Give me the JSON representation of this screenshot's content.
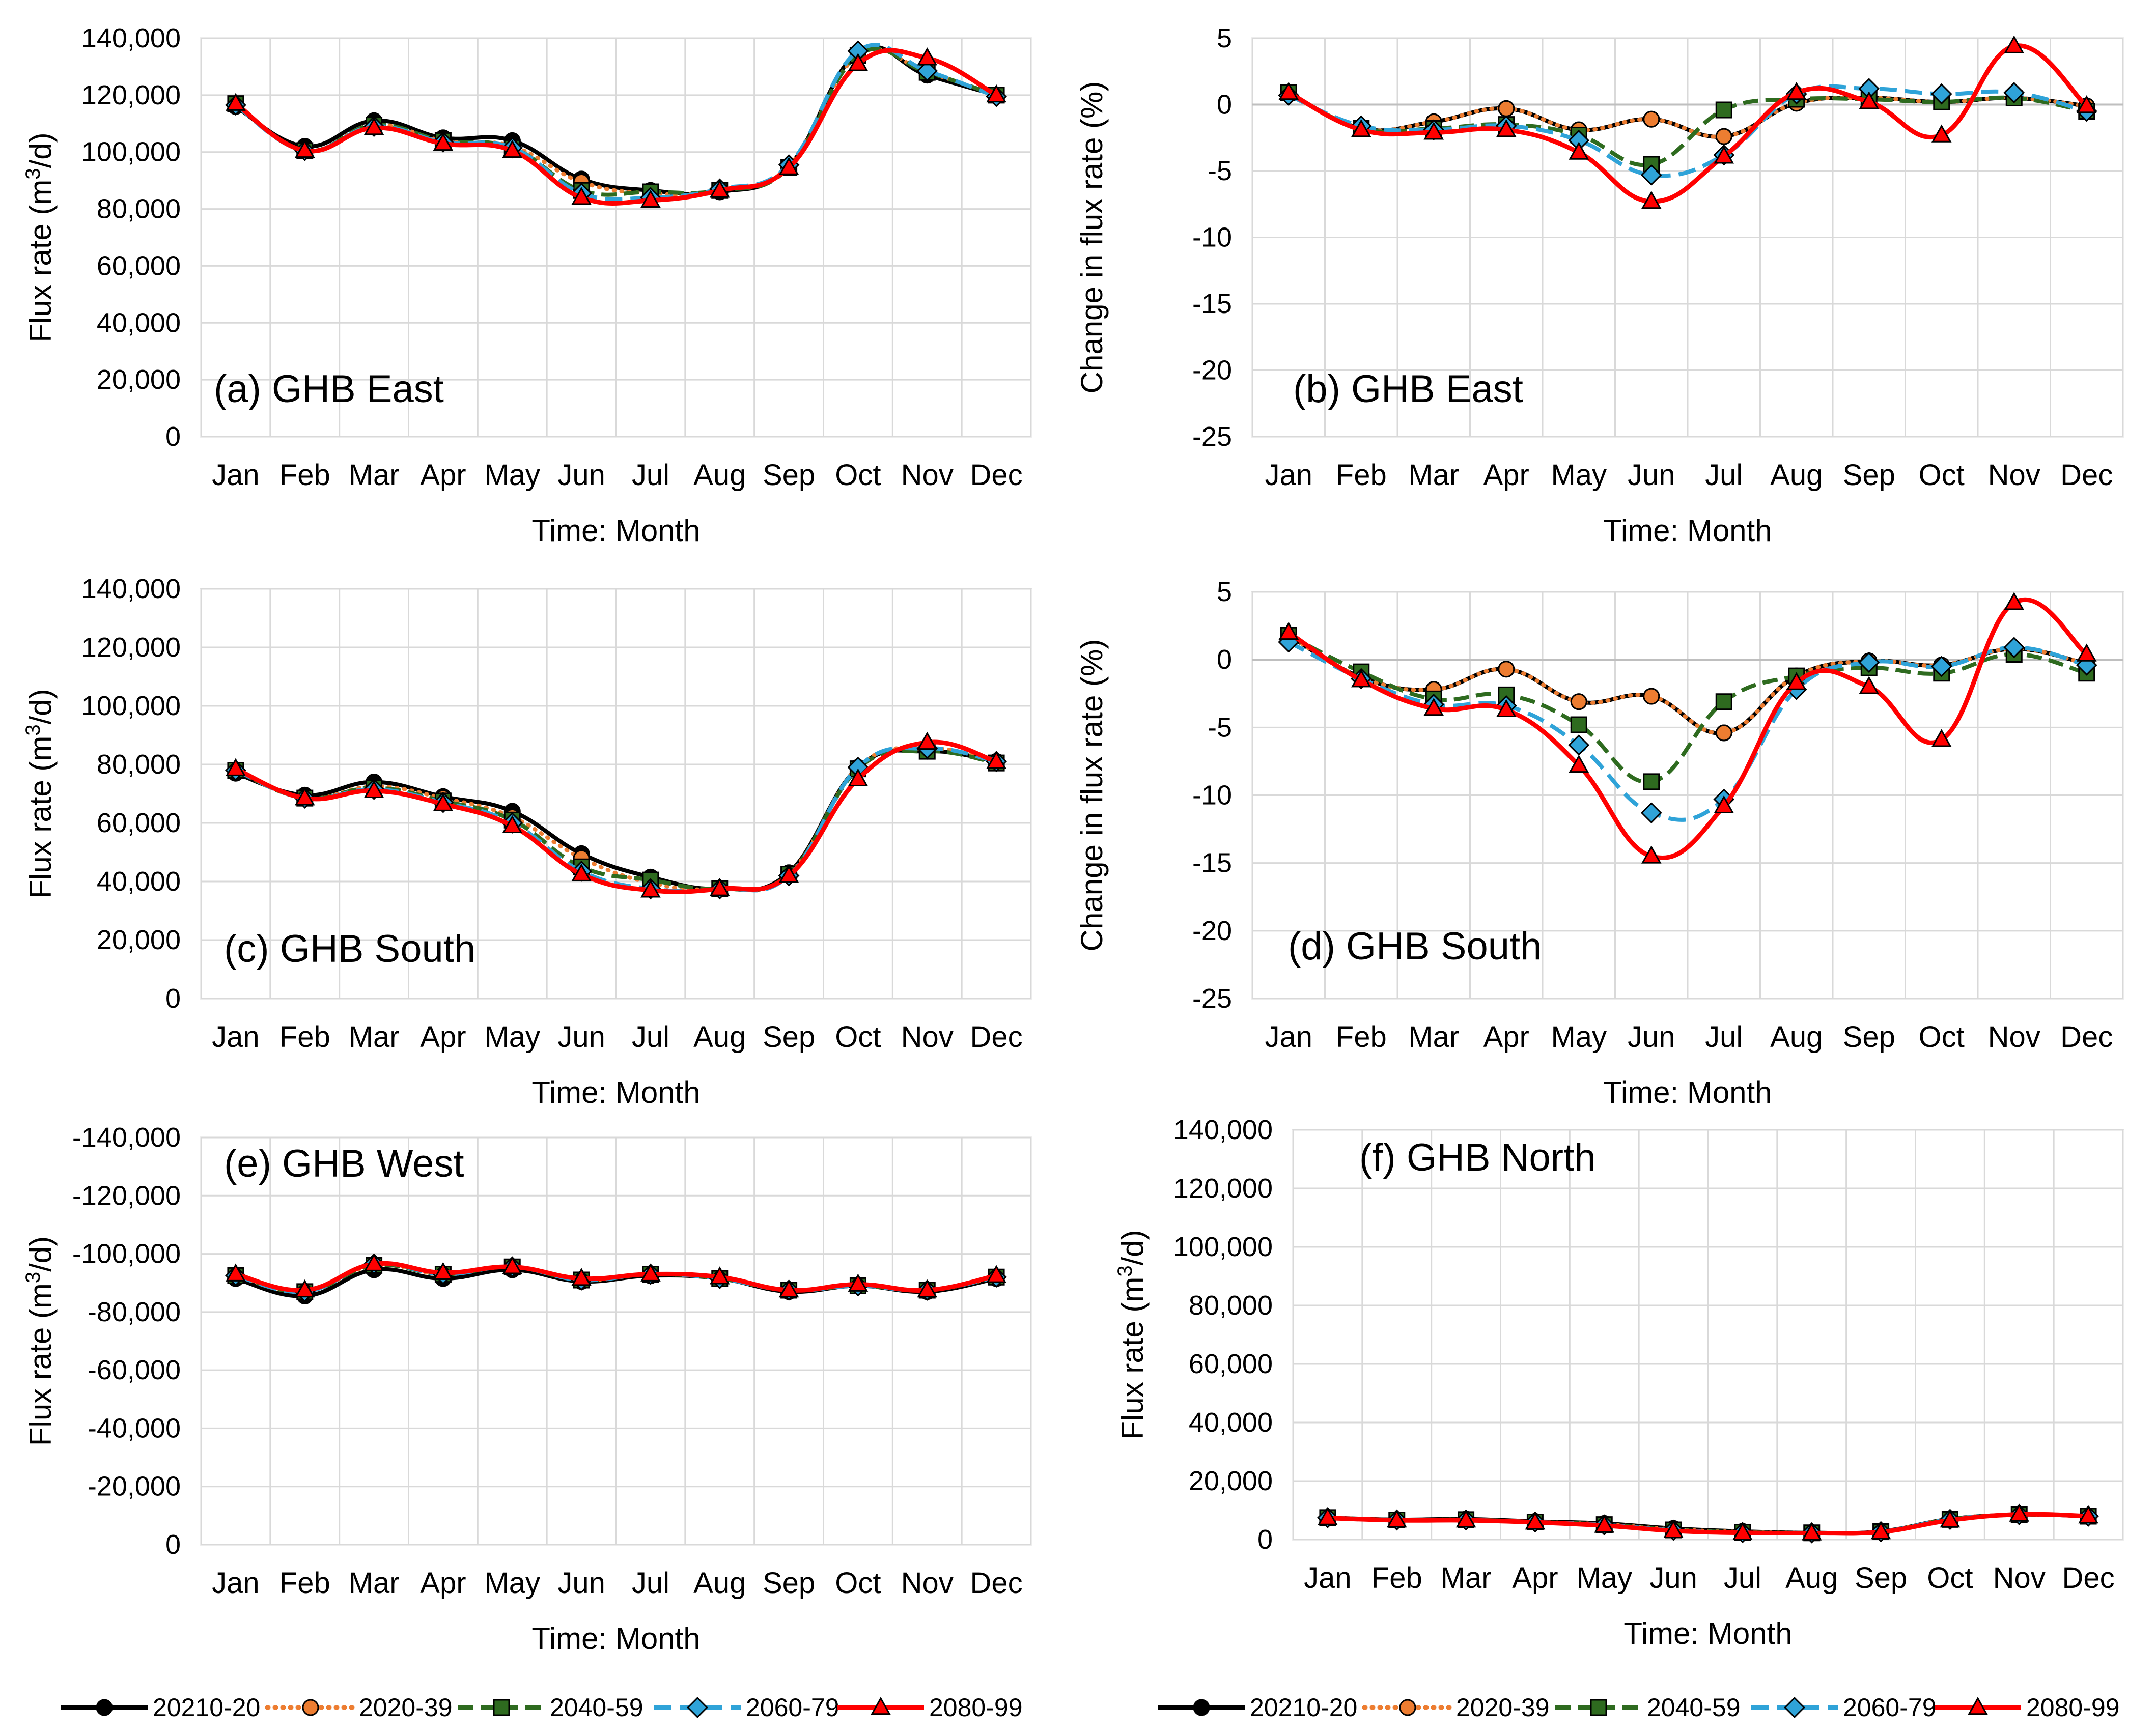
{
  "months": [
    "Jan",
    "Feb",
    "Mar",
    "Apr",
    "May",
    "Jun",
    "Jul",
    "Aug",
    "Sep",
    "Oct",
    "Nov",
    "Dec"
  ],
  "legend": [
    "20210-20",
    "2020-39",
    "2040-59",
    "2060-79",
    "2080-99"
  ],
  "series_style": [
    {
      "color": "#000000",
      "dash": "",
      "marker": "circle"
    },
    {
      "color": "#ED7D31",
      "dash": "2 13",
      "marker": "circle"
    },
    {
      "color": "#2E6B1F",
      "dash": "30 14",
      "marker": "square"
    },
    {
      "color": "#2FA3D8",
      "dash": "34 16",
      "marker": "diamond"
    },
    {
      "color": "#FF0000",
      "dash": "",
      "marker": "triangle"
    }
  ],
  "chart_data": [
    {
      "type": "line",
      "panel_label": "(a) GHB East",
      "xlabel": "Time: Month",
      "ylabel": "Flux rate (m³/d)",
      "ylim": [
        0,
        140000
      ],
      "yticks": [
        0,
        20000,
        40000,
        60000,
        80000,
        100000,
        120000,
        140000
      ],
      "ytick_labels": [
        "0",
        "20,000",
        "40,000",
        "60,000",
        "80,000",
        "100,000",
        "120,000",
        "140,000"
      ],
      "categories": [
        "Jan",
        "Feb",
        "Mar",
        "Apr",
        "May",
        "Jun",
        "Jul",
        "Aug",
        "Sep",
        "Oct",
        "Nov",
        "Dec"
      ],
      "series": [
        {
          "name": "20210-20",
          "values": [
            116000,
            102000,
            111000,
            105000,
            104000,
            90500,
            86500,
            86000,
            95000,
            135000,
            127000,
            120000
          ]
        },
        {
          "name": "2020-39",
          "values": [
            117000,
            100500,
            109500,
            104000,
            102000,
            89500,
            85500,
            86500,
            95000,
            134000,
            128000,
            120000
          ]
        },
        {
          "name": "2040-59",
          "values": [
            117000,
            100500,
            109500,
            104000,
            101500,
            86500,
            86000,
            86500,
            94500,
            134000,
            128000,
            120000
          ]
        },
        {
          "name": "2060-79",
          "values": [
            116500,
            100500,
            109000,
            103500,
            101500,
            85500,
            84000,
            87000,
            95500,
            135500,
            128500,
            119500
          ]
        },
        {
          "name": "2080-99",
          "values": [
            117000,
            100500,
            108500,
            103000,
            100500,
            84000,
            83000,
            86500,
            94500,
            131000,
            133000,
            120000
          ]
        }
      ]
    },
    {
      "type": "line",
      "panel_label": "(b) GHB East",
      "xlabel": "Time: Month",
      "ylabel": "Change in flux rate (%)",
      "ylim": [
        -25,
        5
      ],
      "yticks": [
        -25,
        -20,
        -15,
        -10,
        -5,
        0,
        5
      ],
      "ytick_labels": [
        "-25",
        "-20",
        "-15",
        "-10",
        "-5",
        "0",
        "5"
      ],
      "categories": [
        "Jan",
        "Feb",
        "Mar",
        "Apr",
        "May",
        "Jun",
        "Jul",
        "Aug",
        "Sep",
        "Oct",
        "Nov",
        "Dec"
      ],
      "series": [
        {
          "name": "20210-20",
          "values": [
            0.9,
            -1.8,
            -1.3,
            -0.3,
            -1.9,
            -1.1,
            -2.4,
            0.1,
            0.5,
            0.2,
            0.5,
            -0.1
          ]
        },
        {
          "name": "2020-39",
          "values": [
            0.9,
            -1.8,
            -1.3,
            -0.3,
            -1.9,
            -1.1,
            -2.4,
            0.1,
            0.5,
            0.2,
            0.5,
            -0.1
          ]
        },
        {
          "name": "2040-59",
          "values": [
            0.9,
            -1.8,
            -1.8,
            -1.5,
            -2.3,
            -4.5,
            -0.4,
            0.4,
            0.4,
            0.2,
            0.5,
            -0.5
          ]
        },
        {
          "name": "2060-79",
          "values": [
            0.7,
            -1.6,
            -1.9,
            -1.6,
            -2.7,
            -5.3,
            -3.8,
            0.8,
            1.2,
            0.8,
            0.9,
            -0.5
          ]
        },
        {
          "name": "2080-99",
          "values": [
            0.9,
            -1.9,
            -2.1,
            -1.9,
            -3.6,
            -7.3,
            -3.9,
            0.9,
            0.2,
            -2.3,
            4.4,
            -0.1
          ]
        }
      ]
    },
    {
      "type": "line",
      "panel_label": "(c) GHB South",
      "xlabel": "Time: Month",
      "ylabel": "Flux rate (m³/d)",
      "ylim": [
        0,
        140000
      ],
      "yticks": [
        0,
        20000,
        40000,
        60000,
        80000,
        100000,
        120000,
        140000
      ],
      "ytick_labels": [
        "0",
        "20,000",
        "40,000",
        "60,000",
        "80,000",
        "100,000",
        "120,000",
        "140,000"
      ],
      "categories": [
        "Jan",
        "Feb",
        "Mar",
        "Apr",
        "May",
        "Jun",
        "Jul",
        "Aug",
        "Sep",
        "Oct",
        "Nov",
        "Dec"
      ],
      "series": [
        {
          "name": "20210-20",
          "values": [
            77000,
            69500,
            74000,
            69000,
            64000,
            49500,
            41500,
            37500,
            43000,
            79000,
            84500,
            81000
          ]
        },
        {
          "name": "2020-39",
          "values": [
            78000,
            68500,
            72500,
            68500,
            62000,
            48000,
            39500,
            37500,
            42500,
            79000,
            85500,
            81000
          ]
        },
        {
          "name": "2040-59",
          "values": [
            78000,
            68500,
            72000,
            67500,
            61000,
            45000,
            40500,
            37500,
            42500,
            78500,
            84500,
            80500
          ]
        },
        {
          "name": "2060-79",
          "values": [
            78000,
            68500,
            71500,
            67000,
            60000,
            43500,
            37500,
            37500,
            42000,
            79000,
            85500,
            81000
          ]
        },
        {
          "name": "2080-99",
          "values": [
            78500,
            68500,
            71000,
            66500,
            59000,
            42500,
            37000,
            37500,
            42000,
            75000,
            87500,
            81000
          ]
        }
      ]
    },
    {
      "type": "line",
      "panel_label": "(d) GHB South",
      "xlabel": "Time: Month",
      "ylabel": "Change in flux rate (%)",
      "ylim": [
        -25,
        5
      ],
      "yticks": [
        -25,
        -20,
        -15,
        -10,
        -5,
        0,
        5
      ],
      "ytick_labels": [
        "-25",
        "-20",
        "-15",
        "-10",
        "-5",
        "0",
        "5"
      ],
      "categories": [
        "Jan",
        "Feb",
        "Mar",
        "Apr",
        "May",
        "Jun",
        "Jul",
        "Aug",
        "Sep",
        "Oct",
        "Nov",
        "Dec"
      ],
      "series": [
        {
          "name": "20210-20",
          "values": [
            1.8,
            -1.3,
            -2.2,
            -0.7,
            -3.1,
            -2.7,
            -5.4,
            -1.2,
            -0.1,
            -0.4,
            0.8,
            -0.3
          ]
        },
        {
          "name": "2020-39",
          "values": [
            1.8,
            -1.3,
            -2.2,
            -0.7,
            -3.1,
            -2.7,
            -5.4,
            -1.2,
            -0.1,
            -0.4,
            0.8,
            -0.3
          ]
        },
        {
          "name": "2040-59",
          "values": [
            1.8,
            -0.9,
            -2.9,
            -2.6,
            -4.8,
            -9.0,
            -3.1,
            -1.2,
            -0.6,
            -1.0,
            0.4,
            -1.0
          ]
        },
        {
          "name": "2060-79",
          "values": [
            1.3,
            -1.4,
            -3.3,
            -3.4,
            -6.3,
            -11.3,
            -10.3,
            -2.2,
            -0.2,
            -0.5,
            0.9,
            -0.4
          ]
        },
        {
          "name": "2080-99",
          "values": [
            2.0,
            -1.5,
            -3.6,
            -3.7,
            -7.8,
            -14.5,
            -10.8,
            -1.7,
            -2.0,
            -5.9,
            4.2,
            0.4
          ]
        }
      ]
    },
    {
      "type": "line",
      "panel_label": "(e) GHB West",
      "xlabel": "Time: Month",
      "ylabel": "Flux rate (m³/d)",
      "ylim": [
        0,
        -140000
      ],
      "yticks": [
        0,
        -20000,
        -40000,
        -60000,
        -80000,
        -100000,
        -120000,
        -140000
      ],
      "ytick_labels": [
        "0",
        "-20,000",
        "-40,000",
        "-60,000",
        "-80,000",
        "-100,000",
        "-120,000",
        "-140,000"
      ],
      "categories": [
        "Jan",
        "Feb",
        "Mar",
        "Apr",
        "May",
        "Jun",
        "Jul",
        "Aug",
        "Sep",
        "Oct",
        "Nov",
        "Dec"
      ],
      "series": [
        {
          "name": "20210-20",
          "values": [
            -91500,
            -85500,
            -94500,
            -91500,
            -94500,
            -90500,
            -92500,
            -91500,
            -87000,
            -89000,
            -87000,
            -91500
          ]
        },
        {
          "name": "2020-39",
          "values": [
            -92500,
            -87000,
            -96000,
            -93000,
            -95500,
            -91000,
            -93000,
            -91500,
            -87500,
            -89000,
            -87500,
            -92000
          ]
        },
        {
          "name": "2040-59",
          "values": [
            -92500,
            -87000,
            -96000,
            -93000,
            -95500,
            -91000,
            -93000,
            -91500,
            -87500,
            -89000,
            -87500,
            -92000
          ]
        },
        {
          "name": "2060-79",
          "values": [
            -92500,
            -87000,
            -96500,
            -93000,
            -95500,
            -91000,
            -93000,
            -91500,
            -87500,
            -89000,
            -87500,
            -92000
          ]
        },
        {
          "name": "2080-99",
          "values": [
            -93000,
            -87500,
            -96500,
            -93500,
            -95500,
            -91500,
            -93000,
            -92000,
            -87500,
            -89500,
            -87500,
            -92500
          ]
        }
      ]
    },
    {
      "type": "line",
      "panel_label": "(f) GHB North",
      "xlabel": "Time: Month",
      "ylabel": "Flux rate (m³/d)",
      "ylim": [
        0,
        140000
      ],
      "yticks": [
        0,
        20000,
        40000,
        60000,
        80000,
        100000,
        120000,
        140000
      ],
      "ytick_labels": [
        "0",
        "20,000",
        "40,000",
        "60,000",
        "80,000",
        "100,000",
        "120,000",
        "140,000"
      ],
      "categories": [
        "Jan",
        "Feb",
        "Mar",
        "Apr",
        "May",
        "Jun",
        "Jul",
        "Aug",
        "Sep",
        "Oct",
        "Nov",
        "Dec"
      ],
      "series": [
        {
          "name": "20210-20",
          "values": [
            7500,
            6800,
            7000,
            6200,
            5500,
            3800,
            2800,
            2300,
            2800,
            7000,
            8500,
            8000
          ]
        },
        {
          "name": "2020-39",
          "values": [
            7500,
            6700,
            6800,
            6000,
            5200,
            3500,
            2600,
            2300,
            2700,
            7000,
            8500,
            8000
          ]
        },
        {
          "name": "2040-59",
          "values": [
            7500,
            6700,
            6800,
            6000,
            5100,
            3300,
            2500,
            2300,
            2700,
            6900,
            8500,
            8000
          ]
        },
        {
          "name": "2060-79",
          "values": [
            7500,
            6700,
            6700,
            6000,
            5000,
            3200,
            2400,
            2300,
            2700,
            6900,
            8500,
            8000
          ]
        },
        {
          "name": "2080-99",
          "values": [
            7400,
            6600,
            6600,
            5900,
            4800,
            3000,
            2300,
            2200,
            2600,
            6600,
            8600,
            8000
          ]
        }
      ]
    }
  ]
}
